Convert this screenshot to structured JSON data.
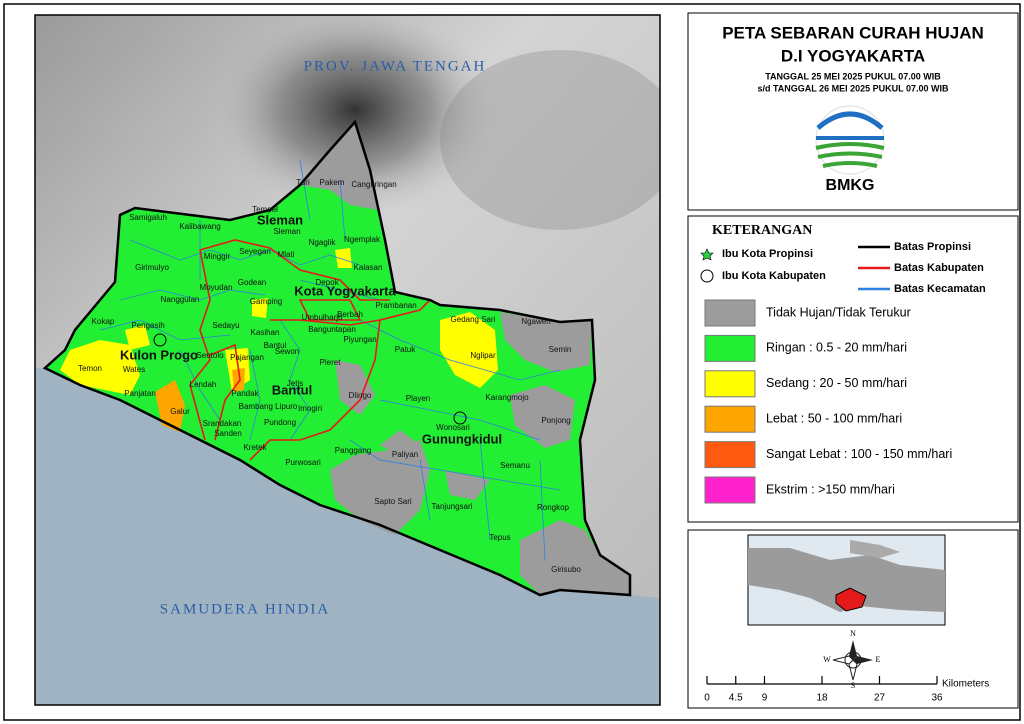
{
  "header": {
    "title_line1": "PETA SEBARAN CURAH HUJAN",
    "title_line2": "D.I YOGYAKARTA",
    "date_line1": "TANGGAL 25 MEI 2025 PUKUL 07.00 WIB",
    "date_line2": "s/d TANGGAL 26 MEI 2025 PUKUL 07.00 WIB",
    "logo_text": "BMKG"
  },
  "map": {
    "province_label": "PROV. JAWA TENGAH",
    "ocean_label": "SAMUDERA HINDIA",
    "regencies": [
      "Sleman",
      "Kota Yogyakarta",
      "Kulon Progo",
      "Bantul",
      "Gunungkidul"
    ],
    "districts": [
      "Turi",
      "Pakem",
      "Cangkringan",
      "Tempel",
      "Sleman",
      "Samigaluh",
      "Kalibawang",
      "Ngaglik",
      "Ngemplak",
      "Minggir",
      "Seyegan",
      "Mlati",
      "Kalasan",
      "Girimulyo",
      "Godean",
      "Depok",
      "Moyudan",
      "Gamping",
      "Nanggulan",
      "Prambanan",
      "Berbah",
      "Kokap",
      "Pengasih",
      "Sedayu",
      "Kasihan",
      "Umbulharjo",
      "Banguntapan",
      "Piyungan",
      "Gedang Sari",
      "Ngawen",
      "Semin",
      "Patuk",
      "Nglipar",
      "Sewon",
      "Pleret",
      "Temon",
      "Wates",
      "Pajangan",
      "Sentolo",
      "Lendah",
      "Panjatan",
      "Pandak",
      "Bantul",
      "Jetis",
      "Dlingo",
      "Playen",
      "Karangmojo",
      "Galur",
      "Bambang Lipuro",
      "Imogiri",
      "Ponjong",
      "Srandakan",
      "Wonosari",
      "Sanden",
      "Pundong",
      "Kretek",
      "Panggang",
      "Paliyan",
      "Semanu",
      "Purwosari",
      "Sapto Sari",
      "Tanjungsari",
      "Rongkop",
      "Tepus",
      "Girisubo"
    ]
  },
  "legend": {
    "title": "KETERANGAN",
    "symbols": [
      "Ibu Kota Propinsi",
      "Ibu Kota Kabupaten"
    ],
    "boundaries": [
      {
        "label": "Batas Propinsi",
        "color": "#000000"
      },
      {
        "label": "Batas Kabupaten",
        "color": "#e41a1a"
      },
      {
        "label": "Batas Kecamatan",
        "color": "#2f7fe0"
      }
    ],
    "classes": [
      {
        "label": "Tidak Hujan/Tidak Terukur",
        "color": "#9c9c9c"
      },
      {
        "label": "Ringan : 0.5 - 20 mm/hari",
        "color": "#22ee33"
      },
      {
        "label": "Sedang : 20 - 50 mm/hari",
        "color": "#ffff00"
      },
      {
        "label": "Lebat    : 50 - 100 mm/hari",
        "color": "#ffa500"
      },
      {
        "label": "Sangat Lebat : 100 - 150 mm/hari",
        "color": "#ff5a10"
      },
      {
        "label": "Ekstrim : >150 mm/hari",
        "color": "#ff22cc"
      }
    ]
  },
  "scale": {
    "ticks": [
      0,
      4.5,
      9,
      18,
      27,
      36
    ],
    "unit": "Kilometers"
  },
  "compass": {
    "n": "N",
    "e": "E",
    "s": "S",
    "w": "W"
  }
}
